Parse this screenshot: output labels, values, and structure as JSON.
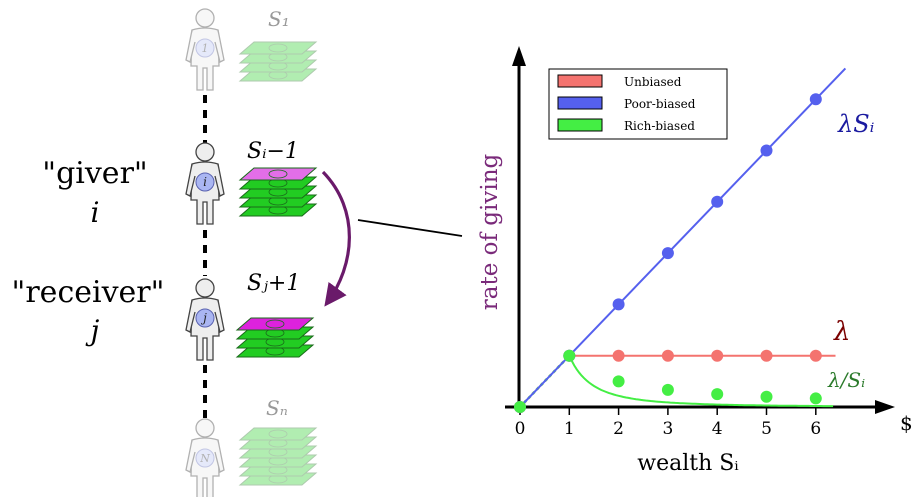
{
  "agents": {
    "first": {
      "stack_label": "S₁",
      "badge": "1"
    },
    "giver": {
      "role": "\"giver\"",
      "symbol": "i",
      "stack_label": "Sᵢ−1",
      "badge": "i"
    },
    "receiver": {
      "role": "\"receiver\"",
      "symbol": "j",
      "stack_label": "Sⱼ+1",
      "badge": "j"
    },
    "last": {
      "stack_label": "Sₙ",
      "badge": "N"
    }
  },
  "colors": {
    "unbiased": "#f4736f",
    "poor_biased": "#5560ee",
    "rich_biased": "#44ee44",
    "stack_green": "#22cc22",
    "stack_top_pink": "#e36ee8",
    "stack_top_magenta": "#dd22dd",
    "arrow_purple": "#6a1a6a",
    "ylabel_purple": "#7a2a7a",
    "lambda_label": "#7a0000"
  },
  "chart_data": {
    "type": "line",
    "xlabel": "wealth Sᵢ",
    "ylabel": "rate of giving",
    "x_axis_end_label": "$",
    "xticks": [
      "0",
      "1",
      "2",
      "3",
      "4",
      "5",
      "6"
    ],
    "legend": {
      "placement": "top-left",
      "entries": [
        "Unbiased",
        "Poor-biased",
        "Rich-biased"
      ]
    },
    "series": [
      {
        "name": "Unbiased",
        "curve_label": "λ",
        "color": "#f4736f",
        "x": [
          0,
          1,
          2,
          3,
          4,
          5,
          6
        ],
        "y": [
          0,
          1,
          1,
          1,
          1,
          1,
          1
        ]
      },
      {
        "name": "Poor-biased",
        "curve_label": "λSᵢ",
        "color": "#5560ee",
        "x": [
          0,
          1,
          2,
          3,
          4,
          5,
          6
        ],
        "y": [
          0,
          1,
          2,
          3,
          4,
          5,
          6
        ]
      },
      {
        "name": "Rich-biased",
        "curve_label": "λ/Sᵢ",
        "color": "#44ee44",
        "x": [
          0,
          1,
          2,
          3,
          4,
          5,
          6
        ],
        "y": [
          0,
          1,
          0.5,
          0.333,
          0.25,
          0.2,
          0.167
        ]
      }
    ]
  }
}
